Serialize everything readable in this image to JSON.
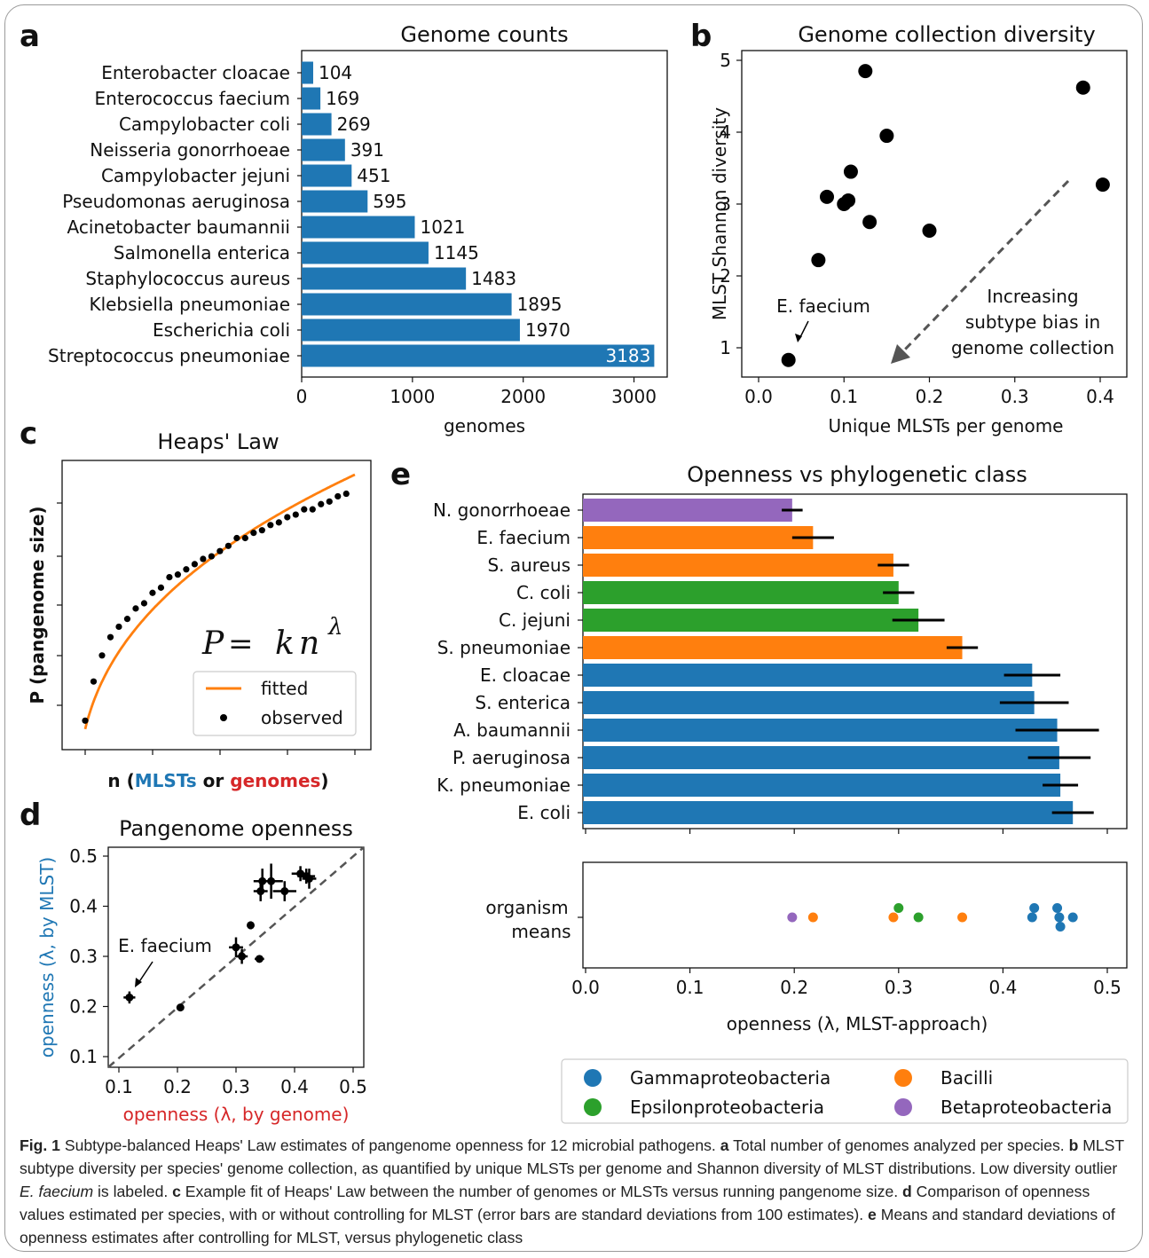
{
  "panels": {
    "a": {
      "letter": "a",
      "chart_data": {
        "type": "bar",
        "orientation": "horizontal",
        "title": "Genome counts",
        "xlabel": "genomes",
        "ylabel": "",
        "xlim": [
          0,
          3300
        ],
        "xticks": [
          0,
          1000,
          2000,
          3000
        ],
        "bar_color": "#1f77b4",
        "categories": [
          "Enterobacter cloacae",
          "Enterococcus faecium",
          "Campylobacter coli",
          "Neisseria gonorrhoeae",
          "Campylobacter jejuni",
          "Pseudomonas aeruginosa",
          "Acinetobacter baumannii",
          "Salmonella enterica",
          "Staphylococcus aureus",
          "Klebsiella pneumoniae",
          "Escherichia coli",
          "Streptococcus pneumoniae"
        ],
        "values": [
          104,
          169,
          269,
          391,
          451,
          595,
          1021,
          1145,
          1483,
          1895,
          1970,
          3183
        ]
      }
    },
    "b": {
      "letter": "b",
      "chart_data": {
        "type": "scatter",
        "title": "Genome collection diversity",
        "xlabel": "Unique MLSTs per genome",
        "ylabel": "MLST Shannon diversity",
        "xlim": [
          0.0,
          0.42
        ],
        "ylim": [
          0.7,
          5.1
        ],
        "xticks": [
          0.0,
          0.1,
          0.2,
          0.3,
          0.4
        ],
        "yticks": [
          1,
          2,
          3,
          4,
          5
        ],
        "x": [
          0.035,
          0.07,
          0.08,
          0.1,
          0.105,
          0.108,
          0.125,
          0.13,
          0.15,
          0.2,
          0.38,
          0.403
        ],
        "y": [
          0.83,
          2.22,
          3.1,
          3.0,
          3.05,
          3.45,
          4.85,
          2.75,
          3.95,
          2.63,
          4.62,
          3.27
        ],
        "annotations": [
          {
            "text": "E. faecium"
          },
          {
            "text": "Increasing\nsubtype bias in\ngenome collection"
          }
        ]
      }
    },
    "c": {
      "letter": "c",
      "chart_data": {
        "type": "line",
        "title": "Heaps' Law",
        "xlabel_parts": [
          "n (",
          "MLSTs",
          " or ",
          "genomes",
          ")"
        ],
        "ylabel": "P (pangenome size)",
        "formula": {
          "lhs": "P",
          "eq": " = ",
          "k": "k",
          "n": "n",
          "exp": "λ"
        },
        "legend": [
          "fitted",
          "observed"
        ],
        "series": [
          {
            "name": "fitted",
            "x": [
              1,
              2,
              4,
              6,
              8,
              10,
              12,
              14,
              16,
              18,
              20,
              22,
              24,
              26,
              28,
              30,
              33
            ],
            "y": [
              0.0,
              0.29,
              0.41,
              0.5,
              0.57,
              0.63,
              0.68,
              0.72,
              0.76,
              0.8,
              0.84,
              0.87,
              0.9,
              0.93,
              0.96,
              0.98,
              1.01
            ]
          },
          {
            "name": "observed",
            "x": [
              1,
              2,
              3,
              4,
              5,
              6,
              7,
              8,
              9,
              10,
              11,
              12,
              13,
              14,
              15,
              16,
              17,
              18,
              19,
              20,
              21,
              22,
              23,
              24,
              25,
              26,
              27,
              28,
              29,
              30,
              31,
              32
            ],
            "y": [
              0.05,
              0.2,
              0.3,
              0.37,
              0.41,
              0.44,
              0.48,
              0.5,
              0.54,
              0.56,
              0.6,
              0.61,
              0.63,
              0.65,
              0.67,
              0.68,
              0.7,
              0.72,
              0.75,
              0.75,
              0.77,
              0.78,
              0.8,
              0.81,
              0.83,
              0.84,
              0.86,
              0.86,
              0.88,
              0.89,
              0.91,
              0.92
            ]
          }
        ]
      }
    },
    "d": {
      "letter": "d",
      "chart_data": {
        "type": "scatter",
        "title": "Pangenome openness",
        "xlabel": "openness (λ, by genome)",
        "ylabel": "openness (λ, by MLST)",
        "xlim": [
          0.08,
          0.52
        ],
        "ylim": [
          0.08,
          0.52
        ],
        "xticks": [
          0.1,
          0.2,
          0.3,
          0.4,
          0.5
        ],
        "yticks": [
          0.1,
          0.2,
          0.3,
          0.4,
          0.5
        ],
        "xlabel_color": "#d62728",
        "ylabel_color": "#1f77b4",
        "x": [
          0.118,
          0.205,
          0.3,
          0.31,
          0.325,
          0.34,
          0.342,
          0.345,
          0.36,
          0.383,
          0.41,
          0.42,
          0.425
        ],
        "y": [
          0.218,
          0.198,
          0.318,
          0.3,
          0.362,
          0.295,
          0.43,
          0.45,
          0.45,
          0.43,
          0.465,
          0.46,
          0.455
        ],
        "xerr": [
          0.01,
          0.005,
          0.012,
          0.01,
          0.005,
          0.008,
          0.012,
          0.015,
          0.02,
          0.02,
          0.015,
          0.015,
          0.012
        ],
        "yerr": [
          0.012,
          0.004,
          0.02,
          0.015,
          0.008,
          0.005,
          0.02,
          0.025,
          0.035,
          0.02,
          0.015,
          0.015,
          0.02
        ],
        "annotations": [
          {
            "text": "E. faecium"
          }
        ]
      }
    },
    "e": {
      "letter": "e",
      "chart_data": [
        {
          "type": "bar",
          "orientation": "horizontal",
          "title": "Openness vs phylogenetic class",
          "xlim": [
            0.0,
            0.52
          ],
          "categories": [
            "N. gonorrhoeae",
            "E. faecium",
            "S. aureus",
            "C. coli",
            "C. jejuni",
            "S. pneumoniae",
            "E. cloacae",
            "S. enterica",
            "A. baumannii",
            "P. aeruginosa",
            "K. pneumoniae",
            "E. coli"
          ],
          "values": [
            0.198,
            0.218,
            0.295,
            0.3,
            0.319,
            0.361,
            0.428,
            0.43,
            0.452,
            0.454,
            0.455,
            0.467
          ],
          "errors": [
            0.01,
            0.02,
            0.015,
            0.015,
            0.025,
            0.015,
            0.027,
            0.033,
            0.04,
            0.03,
            0.017,
            0.02
          ],
          "classes": [
            "Betaproteobacteria",
            "Bacilli",
            "Bacilli",
            "Epsilonproteobacteria",
            "Epsilonproteobacteria",
            "Bacilli",
            "Gammaproteobacteria",
            "Gammaproteobacteria",
            "Gammaproteobacteria",
            "Gammaproteobacteria",
            "Gammaproteobacteria",
            "Gammaproteobacteria"
          ]
        },
        {
          "type": "scatter",
          "xlabel": "openness (λ, MLST-approach)",
          "ylabel_lines": [
            "organism",
            "means"
          ],
          "xlim": [
            0.0,
            0.52
          ],
          "xticks": [
            0.0,
            0.1,
            0.2,
            0.3,
            0.4,
            0.5
          ],
          "x": [
            0.198,
            0.218,
            0.295,
            0.3,
            0.319,
            0.361,
            0.428,
            0.43,
            0.452,
            0.454,
            0.455,
            0.467
          ],
          "jitter": [
            0.0,
            0.0,
            0.0,
            0.3,
            0.0,
            0.0,
            0.0,
            0.3,
            0.3,
            0.0,
            -0.3,
            0.0
          ],
          "classes": [
            "Betaproteobacteria",
            "Bacilli",
            "Bacilli",
            "Epsilonproteobacteria",
            "Epsilonproteobacteria",
            "Bacilli",
            "Gammaproteobacteria",
            "Gammaproteobacteria",
            "Gammaproteobacteria",
            "Gammaproteobacteria",
            "Gammaproteobacteria",
            "Gammaproteobacteria"
          ]
        }
      ]
    }
  },
  "class_colors": {
    "Gammaproteobacteria": "#1f77b4",
    "Bacilli": "#ff7f0e",
    "Epsilonproteobacteria": "#2ca02c",
    "Betaproteobacteria": "#9467bd"
  },
  "legend": [
    "Gammaproteobacteria",
    "Bacilli",
    "Epsilonproteobacteria",
    "Betaproteobacteria"
  ],
  "caption": {
    "label": "Fig. 1",
    "text": "  Subtype-balanced Heaps' Law estimates of pangenome openness for 12 microbial pathogens. ",
    "parts": [
      {
        "b": "a",
        "t": " Total number of genomes analyzed per species. "
      },
      {
        "b": "b",
        "t": " MLST subtype diversity per species' genome collection, as quantified by unique MLSTs per genome and Shannon diversity of MLST distributions. Low diversity outlier ",
        "i": "E. faecium",
        "t2": " is labeled. "
      },
      {
        "b": "c",
        "t": " Example fit of Heaps' Law between the number of genomes or MLSTs versus running pangenome size. "
      },
      {
        "b": "d",
        "t": " Comparison of openness values estimated per species, with or without controlling for MLST (error bars are standard deviations from 100 estimates). "
      },
      {
        "b": "e",
        "t": " Means and standard deviations of openness estimates after controlling for MLST, versus phylogenetic class"
      }
    ]
  }
}
